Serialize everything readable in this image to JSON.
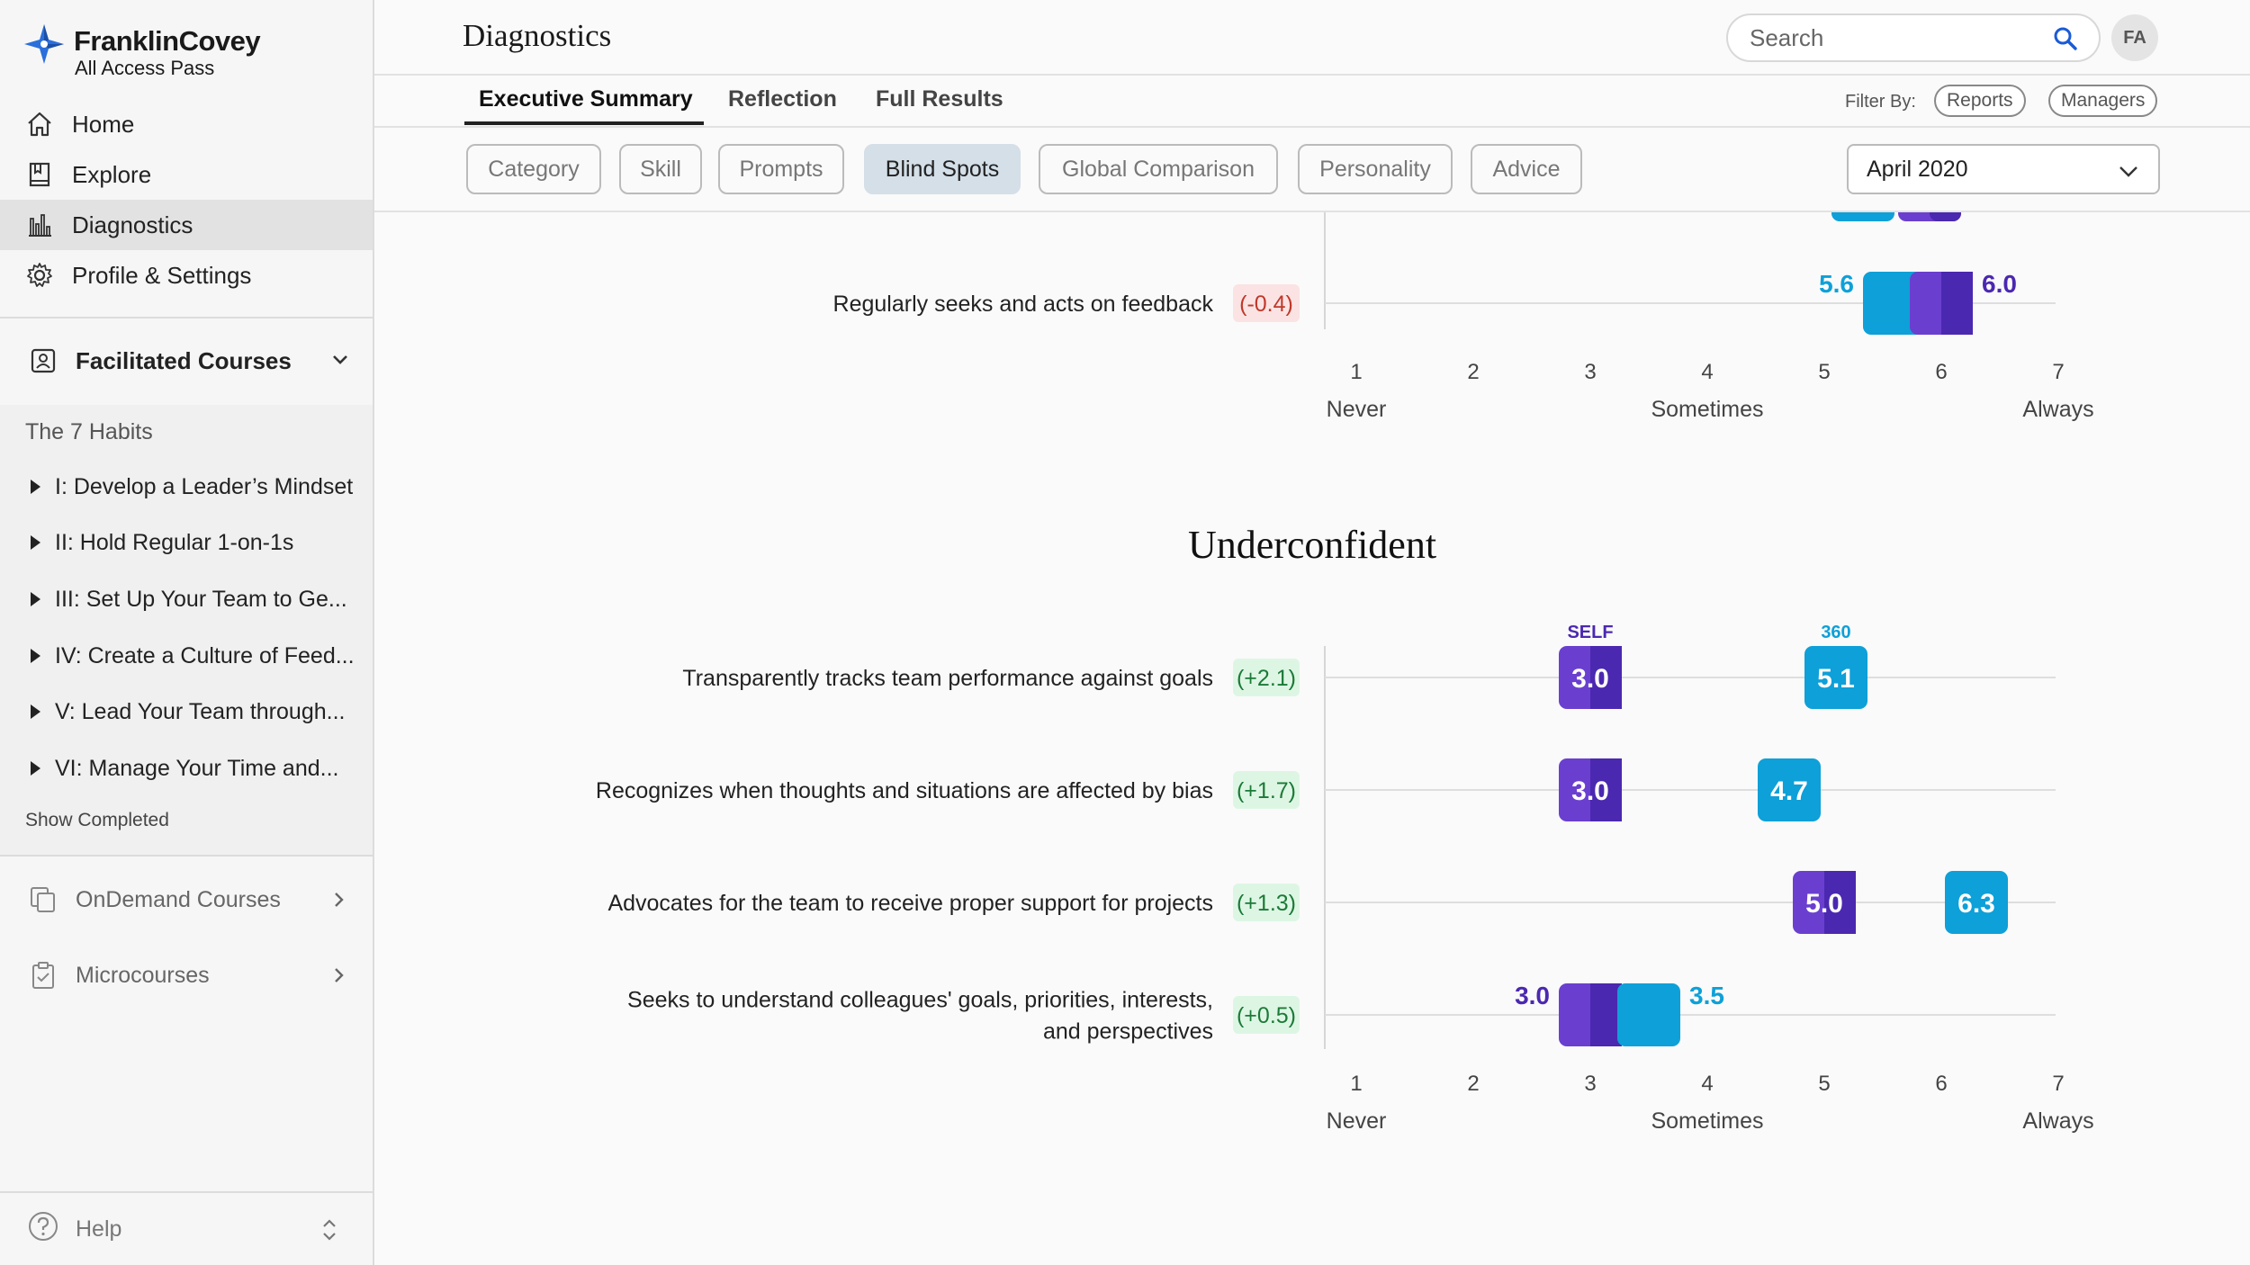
{
  "app": {
    "brand_name": "FranklinCovey",
    "brand_sub": "All Access Pass",
    "avatar_initials": "FA"
  },
  "sidebar": {
    "nav": [
      {
        "label": "Home",
        "icon": "home-icon"
      },
      {
        "label": "Explore",
        "icon": "book-icon"
      },
      {
        "label": "Diagnostics",
        "icon": "bar-chart-icon",
        "active": true
      },
      {
        "label": "Profile & Settings",
        "icon": "gear-icon"
      }
    ],
    "facilitated": "Facilitated Courses",
    "habits_title": "The 7 Habits",
    "habits": [
      "I: Develop a Leader’s Mindset",
      "II: Hold Regular 1-on-1s",
      "III: Set Up Your Team to Ge...",
      "IV: Create a Culture of Feed...",
      "V: Lead Your Team through...",
      "VI: Manage Your Time and..."
    ],
    "show_completed": "Show Completed",
    "ondemand": "OnDemand Courses",
    "microcourses": "Microcourses",
    "help": "Help"
  },
  "header": {
    "title": "Diagnostics",
    "search_placeholder": "Search"
  },
  "tabs": [
    {
      "label": "Executive Summary",
      "active": true
    },
    {
      "label": "Reflection"
    },
    {
      "label": "Full Results"
    }
  ],
  "filter": {
    "label": "Filter By:",
    "buttons": [
      "Reports",
      "Managers"
    ]
  },
  "chips": [
    {
      "label": "Category"
    },
    {
      "label": "Skill"
    },
    {
      "label": "Prompts"
    },
    {
      "label": "Blind Spots",
      "active": true
    },
    {
      "label": "Global Comparison"
    },
    {
      "label": "Personality"
    },
    {
      "label": "Advice"
    }
  ],
  "date_select": "April 2020",
  "colors": {
    "self": "#6a3fcf",
    "self_dark": "#4b28b0",
    "r360": "#0ea0d8",
    "positive_bg": "#ddf6e4",
    "positive_text": "#1c7a37",
    "negative_bg": "#fbe3e3",
    "negative_text": "#c0392b"
  },
  "chart_data": [
    {
      "type": "dot-comparison",
      "title": "",
      "x_ticks": [
        1,
        2,
        3,
        4,
        5,
        6,
        7
      ],
      "x_tick_labels": {
        "1": "Never",
        "4": "Sometimes",
        "7": "Always"
      },
      "xlim": [
        1,
        7
      ],
      "series_names": [
        "SELF",
        "360"
      ],
      "rows": [
        {
          "label": "Regularly seeks and acts on feedback",
          "diff": "(-0.4)",
          "self": 6.0,
          "r360": 5.6
        }
      ]
    },
    {
      "type": "dot-comparison",
      "title": "Underconfident",
      "legend": {
        "self": "SELF",
        "r360": "360"
      },
      "x_ticks": [
        1,
        2,
        3,
        4,
        5,
        6,
        7
      ],
      "x_tick_labels": {
        "1": "Never",
        "4": "Sometimes",
        "7": "Always"
      },
      "xlim": [
        1,
        7
      ],
      "rows": [
        {
          "label": "Transparently tracks team performance against goals",
          "diff": "(+2.1)",
          "self": 3.0,
          "r360": 5.1
        },
        {
          "label": "Recognizes when thoughts and situations are affected by bias",
          "diff": "(+1.7)",
          "self": 3.0,
          "r360": 4.7
        },
        {
          "label": "Advocates for the team to receive proper support for projects",
          "diff": "(+1.3)",
          "self": 5.0,
          "r360": 6.3
        },
        {
          "label": "Seeks to understand colleagues' goals, priorities, interests, and perspectives",
          "label_lines": [
            "Seeks to understand colleagues' goals, priorities, interests,",
            "and perspectives"
          ],
          "diff": "(+0.5)",
          "self": 3.0,
          "r360": 3.5
        }
      ]
    }
  ]
}
